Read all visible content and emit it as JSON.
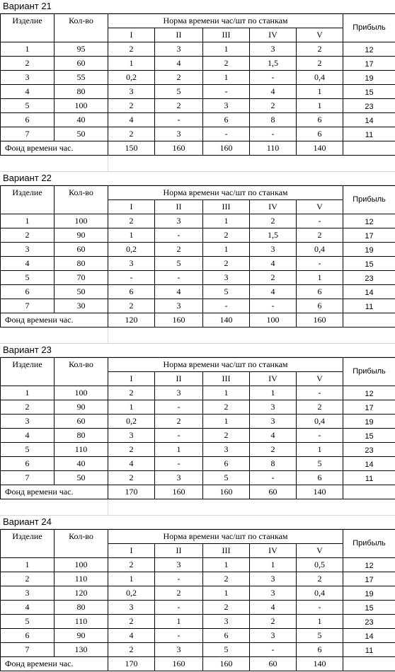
{
  "headers": {
    "product": "Изделие",
    "quantity": "Кол-во",
    "norm": "Норма времени час/шт по станкам",
    "profit": "Прибыль",
    "machines": [
      "I",
      "II",
      "III",
      "IV",
      "V"
    ],
    "fund": "Фонд времени час."
  },
  "variants": [
    {
      "title": "Вариант 21",
      "rows": [
        [
          "1",
          "95",
          "2",
          "3",
          "1",
          "3",
          "2",
          "12"
        ],
        [
          "2",
          "60",
          "1",
          "4",
          "2",
          "1,5",
          "2",
          "17"
        ],
        [
          "3",
          "55",
          "0,2",
          "2",
          "1",
          "-",
          "0,4",
          "19"
        ],
        [
          "4",
          "80",
          "3",
          "5",
          "-",
          "4",
          "1",
          "15"
        ],
        [
          "5",
          "100",
          "2",
          "2",
          "3",
          "2",
          "1",
          "23"
        ],
        [
          "6",
          "40",
          "4",
          "-",
          "6",
          "8",
          "6",
          "14"
        ],
        [
          "7",
          "50",
          "2",
          "3",
          "-",
          "-",
          "6",
          "11"
        ]
      ],
      "fund": [
        "150",
        "160",
        "160",
        "110",
        "140"
      ]
    },
    {
      "title": "Вариант 22",
      "rows": [
        [
          "1",
          "100",
          "2",
          "3",
          "1",
          "2",
          "-",
          "12"
        ],
        [
          "2",
          "90",
          "1",
          "-",
          "2",
          "1,5",
          "2",
          "17"
        ],
        [
          "3",
          "60",
          "0,2",
          "2",
          "1",
          "3",
          "0,4",
          "19"
        ],
        [
          "4",
          "80",
          "3",
          "5",
          "2",
          "4",
          "-",
          "15"
        ],
        [
          "5",
          "70",
          "-",
          "-",
          "3",
          "2",
          "1",
          "23"
        ],
        [
          "6",
          "50",
          "6",
          "4",
          "5",
          "4",
          "6",
          "14"
        ],
        [
          "7",
          "30",
          "2",
          "3",
          "-",
          "-",
          "6",
          "11"
        ]
      ],
      "fund": [
        "120",
        "160",
        "140",
        "100",
        "160"
      ]
    },
    {
      "title": "Вариант 23",
      "rows": [
        [
          "1",
          "100",
          "2",
          "3",
          "1",
          "1",
          "-",
          "12"
        ],
        [
          "2",
          "90",
          "1",
          "-",
          "2",
          "3",
          "2",
          "17"
        ],
        [
          "3",
          "60",
          "0,2",
          "2",
          "1",
          "3",
          "0,4",
          "19"
        ],
        [
          "4",
          "80",
          "3",
          "-",
          "2",
          "4",
          "-",
          "15"
        ],
        [
          "5",
          "110",
          "2",
          "1",
          "3",
          "2",
          "1",
          "23"
        ],
        [
          "6",
          "40",
          "4",
          "-",
          "6",
          "8",
          "5",
          "14"
        ],
        [
          "7",
          "50",
          "2",
          "3",
          "5",
          "-",
          "6",
          "11"
        ]
      ],
      "fund": [
        "170",
        "160",
        "160",
        "60",
        "140"
      ]
    },
    {
      "title": "Вариант 24",
      "rows": [
        [
          "1",
          "100",
          "2",
          "3",
          "1",
          "1",
          "0,5",
          "12"
        ],
        [
          "2",
          "110",
          "1",
          "-",
          "2",
          "3",
          "2",
          "17"
        ],
        [
          "3",
          "120",
          "0,2",
          "2",
          "1",
          "3",
          "0,4",
          "19"
        ],
        [
          "4",
          "80",
          "3",
          "-",
          "2",
          "4",
          "-",
          "15"
        ],
        [
          "5",
          "110",
          "2",
          "1",
          "3",
          "2",
          "1",
          "23"
        ],
        [
          "6",
          "90",
          "4",
          "-",
          "6",
          "3",
          "5",
          "14"
        ],
        [
          "7",
          "130",
          "2",
          "3",
          "5",
          "-",
          "6",
          "11"
        ]
      ],
      "fund": [
        "170",
        "160",
        "160",
        "60",
        "140"
      ]
    }
  ]
}
